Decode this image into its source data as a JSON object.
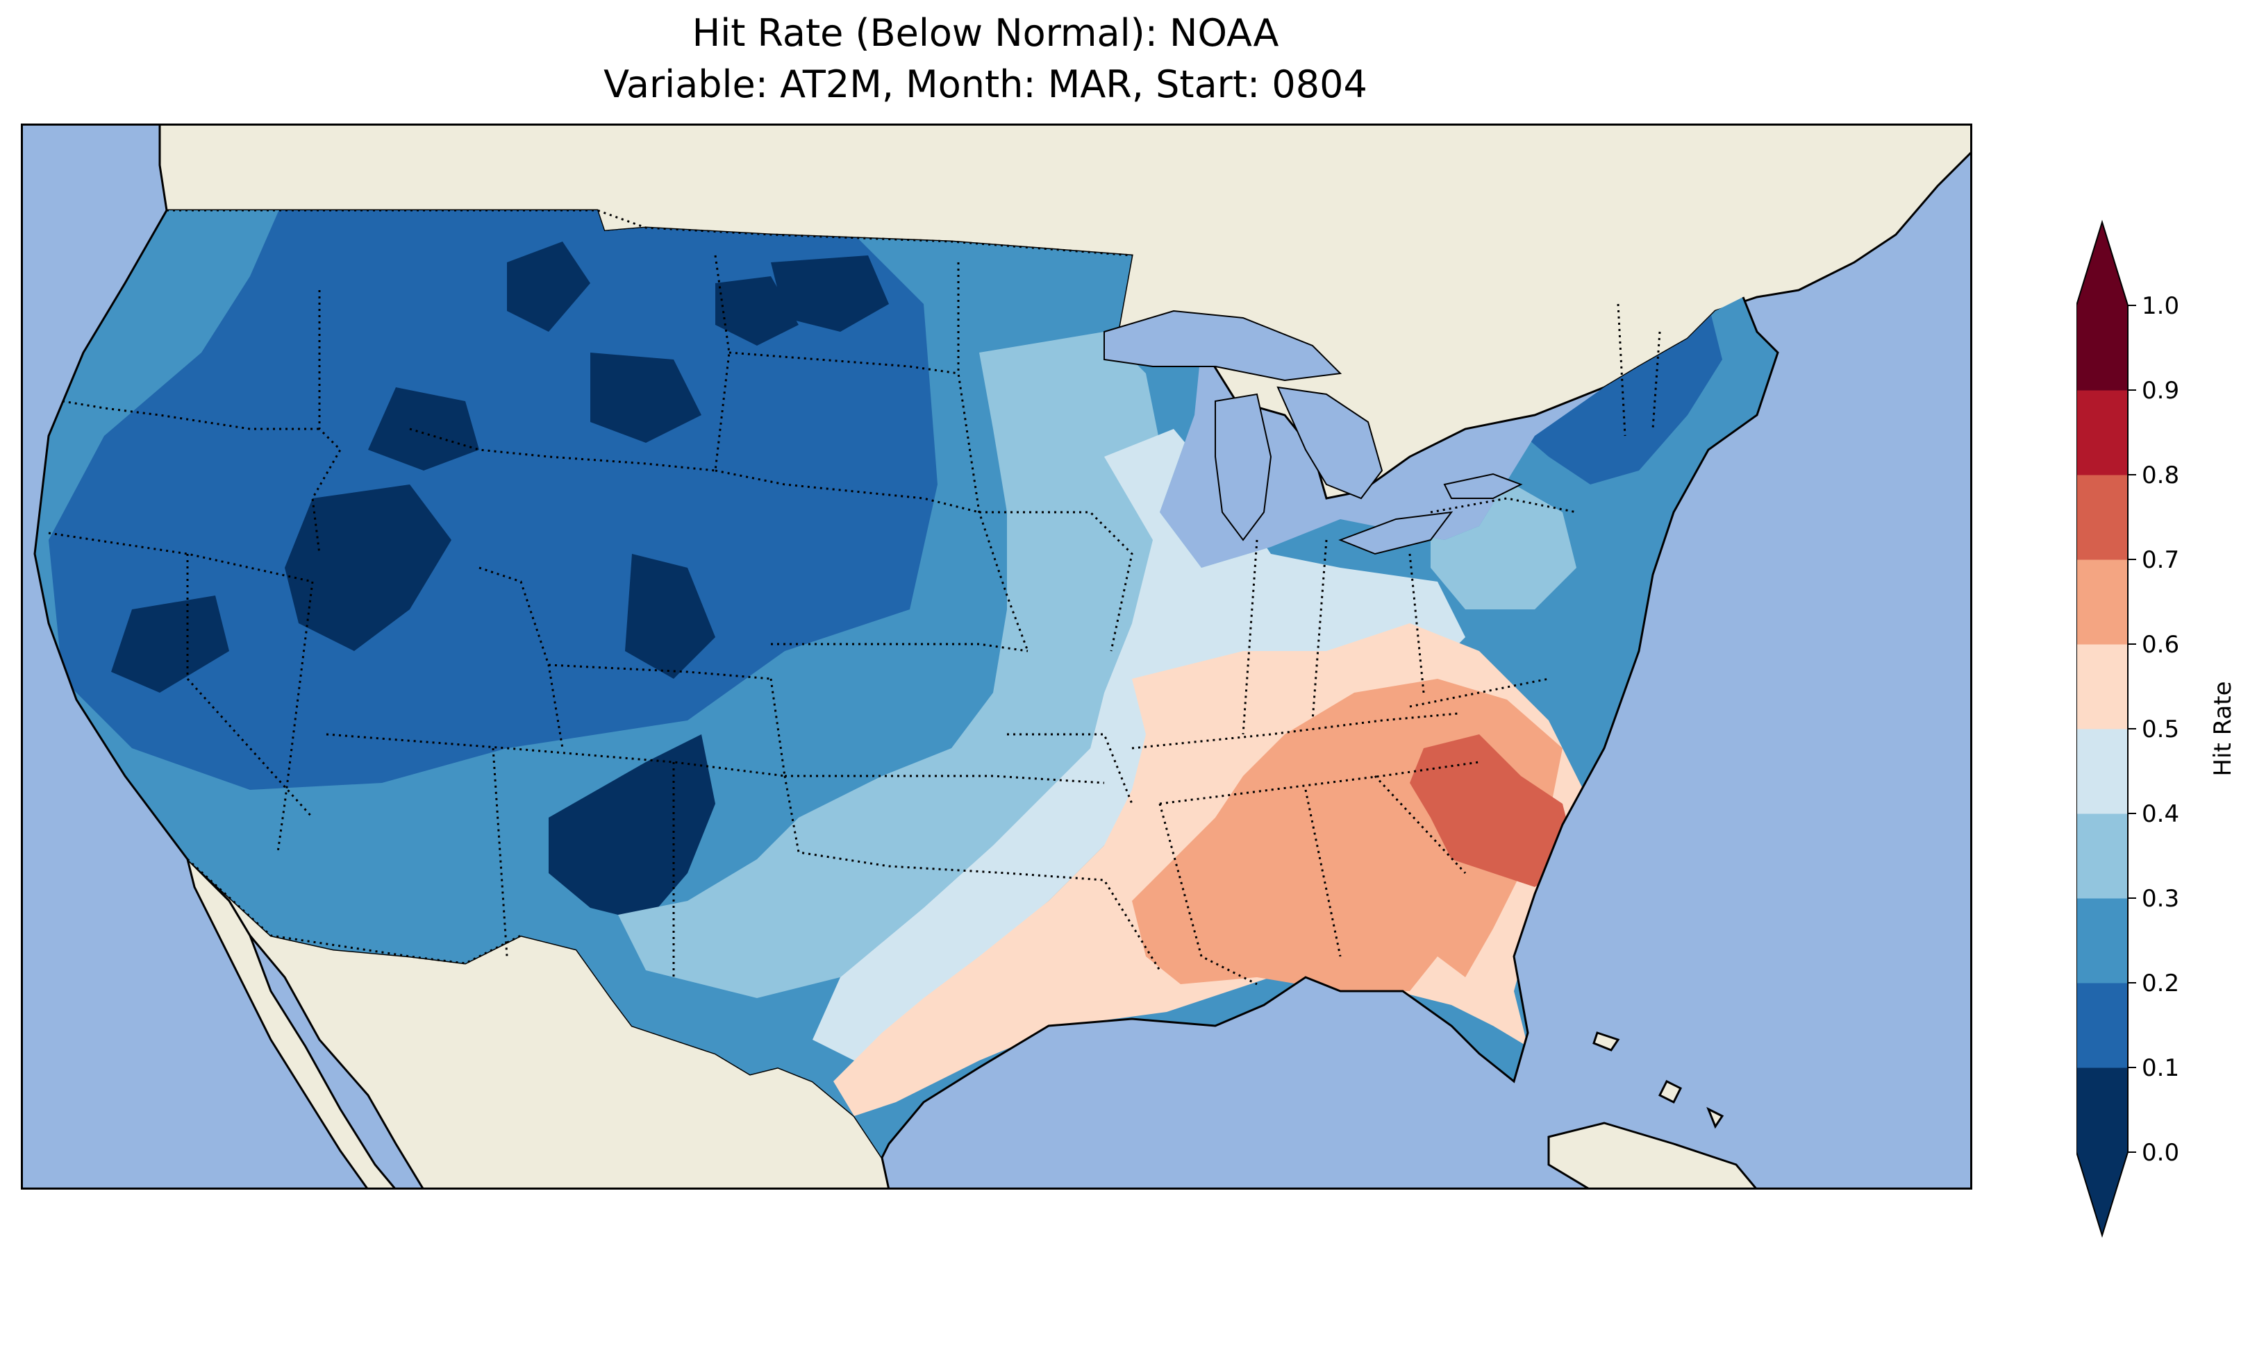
{
  "title": {
    "line1": "Hit Rate (Below Normal): NOAA",
    "line2": "Variable: AT2M, Month: MAR, Start: 0804"
  },
  "map": {
    "region": "Contiguous United States",
    "ocean_color": "#97b6e1",
    "land_color": "#efecdc",
    "coastline_color": "#000000",
    "state_border_style": "dotted"
  },
  "colorbar": {
    "label": "Hit Rate",
    "ticks": [
      "0.0",
      "0.1",
      "0.2",
      "0.3",
      "0.4",
      "0.5",
      "0.6",
      "0.7",
      "0.8",
      "0.9",
      "1.0"
    ],
    "bins": [
      {
        "range": "0.0-0.1",
        "color": "#053061"
      },
      {
        "range": "0.1-0.2",
        "color": "#2166ac"
      },
      {
        "range": "0.2-0.3",
        "color": "#4393c3"
      },
      {
        "range": "0.3-0.4",
        "color": "#92c5de"
      },
      {
        "range": "0.4-0.5",
        "color": "#d1e5f0"
      },
      {
        "range": "0.5-0.6",
        "color": "#fddbc7"
      },
      {
        "range": "0.6-0.7",
        "color": "#f4a582"
      },
      {
        "range": "0.7-0.8",
        "color": "#d6604d"
      },
      {
        "range": "0.8-0.9",
        "color": "#b2182b"
      },
      {
        "range": "0.9-1.0",
        "color": "#67001f"
      }
    ],
    "extend_low_color": "#053061",
    "extend_high_color": "#67001f"
  }
}
